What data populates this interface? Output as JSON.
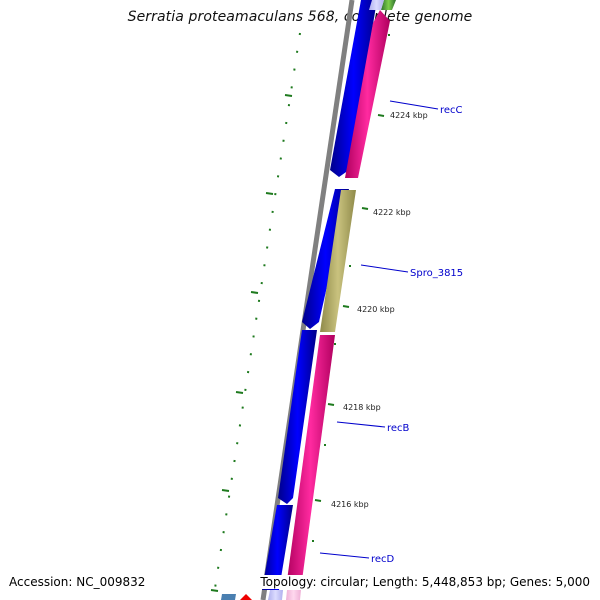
{
  "title": "Serratia proteamaculans 568, complete genome",
  "footer": {
    "accession": "Accession: NC_009832",
    "topology": "Topology: circular; Length: 5,448,853 bp; Genes: 5,000"
  },
  "kbp_ticks": [
    {
      "label": "4224 kbp",
      "value": 4224
    },
    {
      "label": "4222 kbp",
      "value": 4222
    },
    {
      "label": "4220 kbp",
      "value": 4220
    },
    {
      "label": "4218 kbp",
      "value": 4218
    },
    {
      "label": "4216 kbp",
      "value": 4216
    }
  ],
  "gene_labels": [
    "recC",
    "Spro_3815",
    "recB",
    "recD"
  ],
  "colors": {
    "backbone": "#808080",
    "cds_blue": "#0000ff",
    "cds_pink": "#ff1493",
    "cds_khaki": "#bdb76b",
    "tick_green": "#1e7a1e",
    "label_blue": "#0000cc"
  }
}
